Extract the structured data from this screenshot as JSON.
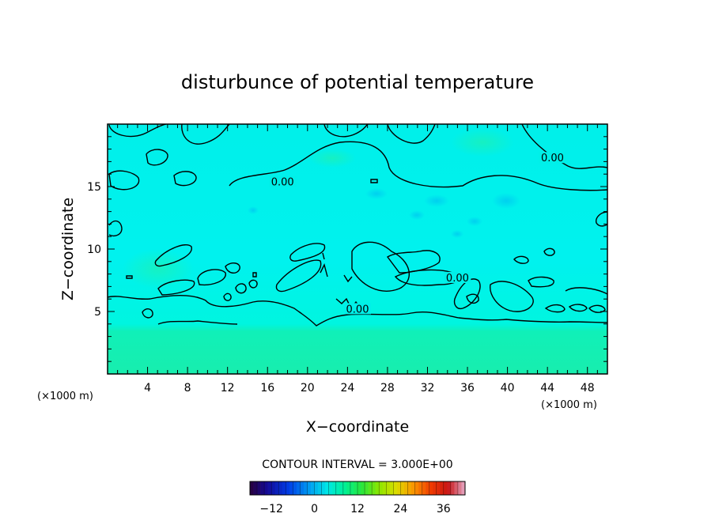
{
  "chart_data": {
    "type": "heatmap",
    "title": "disturbunce of potential temperature",
    "xlabel": "X−coordinate",
    "ylabel": "Z−coordinate",
    "x_unit_left": "(×1000 m)",
    "x_unit_right": "(×1000 m)",
    "xlim": [
      0,
      50
    ],
    "ylim": [
      0,
      20
    ],
    "xticks": [
      4,
      8,
      12,
      16,
      20,
      24,
      28,
      32,
      36,
      40,
      44,
      48
    ],
    "xtick_labels": [
      "4",
      "8",
      "12",
      "16",
      "20",
      "24",
      "28",
      "32",
      "36",
      "40",
      "44",
      "48"
    ],
    "yticks": [
      5,
      10,
      15
    ],
    "ytick_labels": [
      "5",
      "10",
      "15"
    ],
    "contour_interval_text": "CONTOUR INTERVAL = 3.000E+00",
    "contour_labels": [
      {
        "text": "0.00",
        "x": 17.5,
        "y": 15.3
      },
      {
        "text": "0.00",
        "x": 44.5,
        "y": 17.2
      },
      {
        "text": "0.00",
        "x": 35.0,
        "y": 7.6
      },
      {
        "text": "0.00",
        "x": 25.0,
        "y": 5.1
      }
    ],
    "field": {
      "upper_layer_value": -3,
      "lower_layer_value": 1,
      "layer_boundary_z": 4.2
    },
    "colorbar": {
      "range": [
        -18,
        42
      ],
      "ticks": [
        -12,
        0,
        12,
        24,
        36
      ],
      "tick_labels": [
        "−12",
        "0",
        "12",
        "24",
        "36"
      ]
    }
  }
}
